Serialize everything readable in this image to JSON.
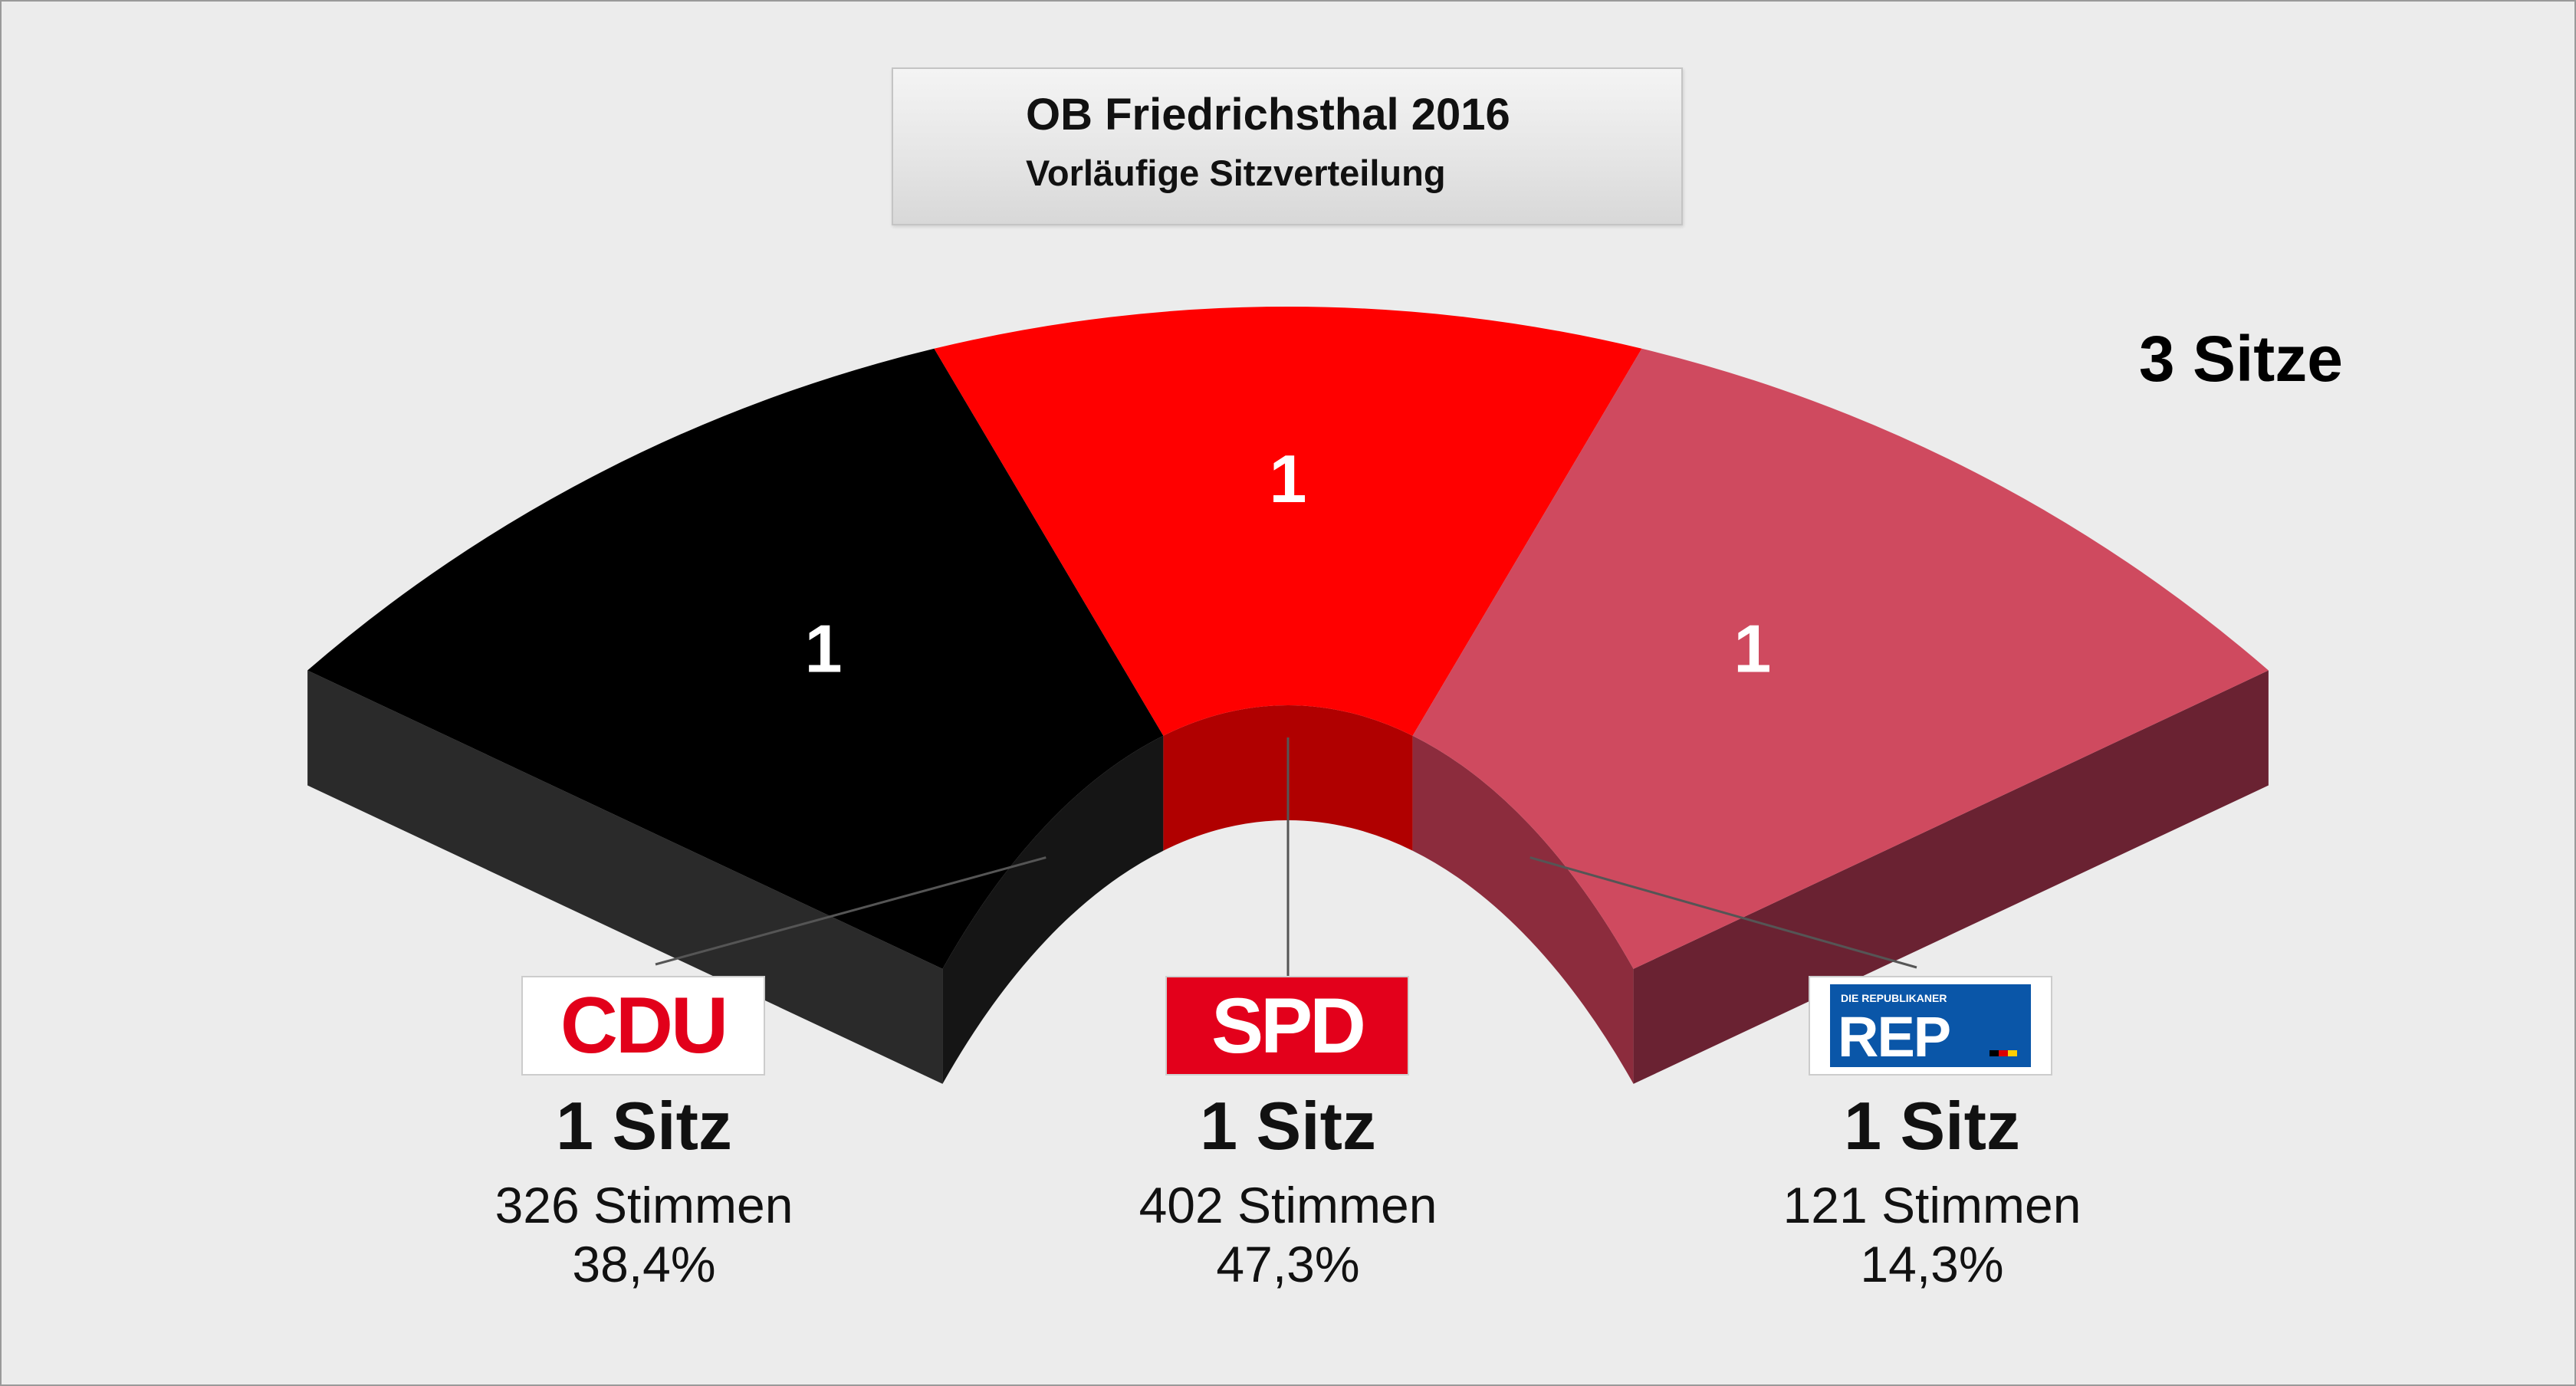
{
  "chart_data": {
    "type": "pie",
    "title": "OB Friedrichsthal 2016",
    "subtitle": "Vorläufige Sitzverteilung",
    "total_label": "3 Sitze",
    "total_seats": 3,
    "parties": [
      {
        "name": "CDU",
        "seats": 1,
        "seat_label": "1",
        "seats_text": "1 Sitz",
        "votes_text": "326 Stimmen",
        "percent_text": "38,4%",
        "votes": 326,
        "percent": 38.4,
        "color": "#000000",
        "side_color": "#2a2a2a",
        "inner_color": "#151515",
        "logo_text": "CDU"
      },
      {
        "name": "SPD",
        "seats": 1,
        "seat_label": "1",
        "seats_text": "1 Sitz",
        "votes_text": "402 Stimmen",
        "percent_text": "47,3%",
        "votes": 402,
        "percent": 47.3,
        "color": "#ff0000",
        "side_color": "#b30000",
        "inner_color": "#b00000",
        "logo_text": "SPD"
      },
      {
        "name": "REP",
        "seats": 1,
        "seat_label": "1",
        "seats_text": "1 Sitz",
        "votes_text": "121 Stimmen",
        "percent_text": "14,3%",
        "votes": 121,
        "percent": 14.3,
        "color": "#cf4a5f",
        "side_color": "#6a2232",
        "inner_color": "#8c2c3d",
        "logo_text": "REP",
        "logo_small_text": "DIE REPUBLIKANER"
      }
    ]
  }
}
